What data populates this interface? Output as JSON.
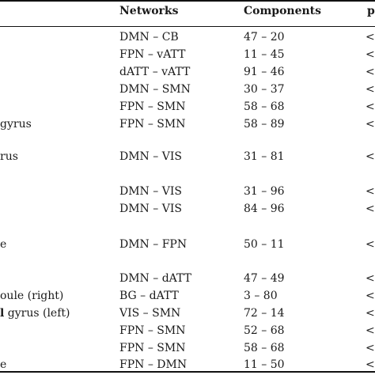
{
  "columns": {
    "networks": "Networks",
    "components": "Components",
    "p": "p"
  },
  "rows": [
    {
      "region": "",
      "region_bold": "",
      "networks": "DMN – CB",
      "components": "47 – 20",
      "p": "<"
    },
    {
      "region": "",
      "region_bold": "",
      "networks": "FPN – vATT",
      "components": "11 – 45",
      "p": "<"
    },
    {
      "region": "",
      "region_bold": "",
      "networks": "dATT – vATT",
      "components": "91 – 46",
      "p": "<"
    },
    {
      "region": "",
      "region_bold": "",
      "networks": "DMN – SMN",
      "components": "30 – 37",
      "p": "<"
    },
    {
      "region": "",
      "region_bold": "",
      "networks": "FPN – SMN",
      "components": "58 – 68",
      "p": "<"
    },
    {
      "region": "gyrus",
      "region_bold": "",
      "networks": "FPN – SMN",
      "components": "58 – 89",
      "p": "<"
    },
    {
      "region": "rus",
      "region_bold": "",
      "networks": "DMN – VIS",
      "components": "31 – 81",
      "p": "<"
    },
    {
      "region": "",
      "region_bold": "",
      "networks": "DMN – VIS",
      "components": "31 – 96",
      "p": "<"
    },
    {
      "region": "",
      "region_bold": "",
      "networks": "DMN – VIS",
      "components": "84 – 96",
      "p": "<"
    },
    {
      "region": "e",
      "region_bold": "",
      "networks": "DMN – FPN",
      "components": "50 – 11",
      "p": "<"
    },
    {
      "region": "",
      "region_bold": "",
      "networks": "DMN – dATT",
      "components": "47 – 49",
      "p": "<"
    },
    {
      "region": "oule (right)",
      "region_bold": "",
      "networks": "BG – dATT",
      "components": "3 – 80",
      "p": "<"
    },
    {
      "region": " gyrus (left)",
      "region_bold": "l",
      "networks": "VIS – SMN",
      "components": "72 – 14",
      "p": "<"
    },
    {
      "region": "",
      "region_bold": "",
      "networks": "FPN – SMN",
      "components": "52 – 68",
      "p": "<"
    },
    {
      "region": "",
      "region_bold": "",
      "networks": "FPN – SMN",
      "components": "58 – 68",
      "p": "<"
    },
    {
      "region": "e",
      "region_bold": "",
      "networks": "FPN – DMN",
      "components": "11 – 50",
      "p": "<"
    }
  ]
}
